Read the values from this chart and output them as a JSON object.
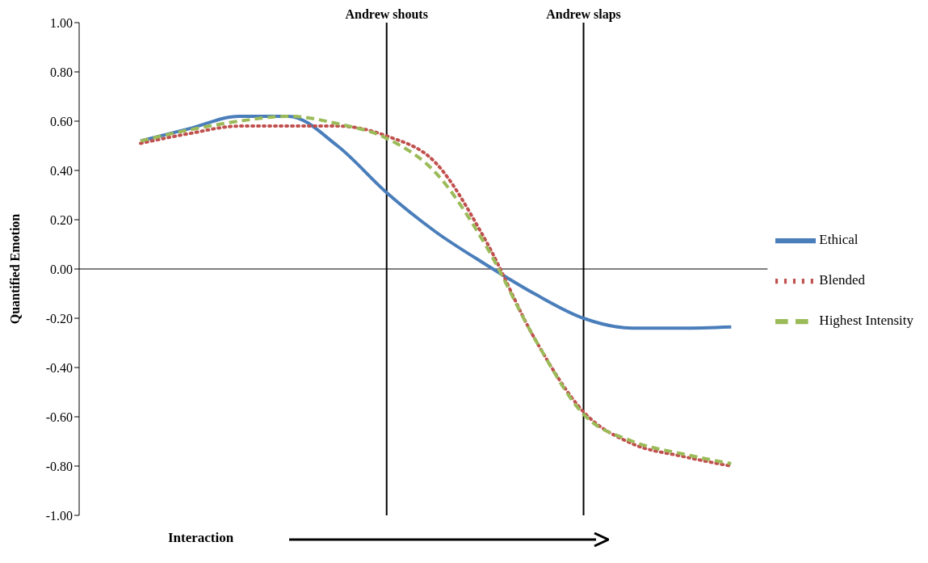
{
  "chart_data": {
    "type": "line",
    "xlabel": "Interaction",
    "ylabel": "Quantified Emotion",
    "categories": [
      null,
      null,
      null,
      null,
      null,
      null,
      null,
      null,
      null,
      null,
      null,
      null,
      null
    ],
    "series": [
      {
        "name": "Ethical",
        "color": "#4a7ebb",
        "line_style": "solid",
        "values": [
          0.52,
          0.57,
          0.62,
          0.62,
          0.5,
          0.31,
          0.15,
          0.02,
          -0.1,
          -0.2,
          -0.24,
          -0.24,
          -0.235
        ]
      },
      {
        "name": "Blended",
        "color": "#c0504d",
        "line_style": "dotted",
        "values": [
          0.51,
          0.55,
          0.58,
          0.58,
          0.58,
          0.54,
          0.43,
          0.12,
          -0.28,
          -0.58,
          -0.71,
          -0.76,
          -0.8
        ]
      },
      {
        "name": "Highest Intensity",
        "color": "#9bbb59",
        "line_style": "dashed",
        "values": [
          0.52,
          0.565,
          0.6,
          0.62,
          0.59,
          0.53,
          0.39,
          0.1,
          -0.28,
          -0.59,
          -0.7,
          -0.75,
          -0.79
        ]
      }
    ],
    "ylim": [
      -1,
      1
    ],
    "yticks": [
      {
        "value": -1,
        "label": "-1.00"
      },
      {
        "value": -0.8,
        "label": "-0.80"
      },
      {
        "value": -0.6,
        "label": "-0.60"
      },
      {
        "value": -0.4,
        "label": "-0.40"
      },
      {
        "value": -0.2,
        "label": "-0.20"
      },
      {
        "value": 0,
        "label": "0.00"
      },
      {
        "value": 0.2,
        "label": "0.20"
      },
      {
        "value": 0.4,
        "label": "0.40"
      },
      {
        "value": 0.6,
        "label": "0.60"
      },
      {
        "value": 0.8,
        "label": "0.80"
      },
      {
        "value": 1,
        "label": "1.00"
      }
    ],
    "annotations": [
      "Andrew shouts",
      "Andrew slaps"
    ],
    "legend": "right",
    "marker": "none",
    "tick_labels": "y"
  }
}
